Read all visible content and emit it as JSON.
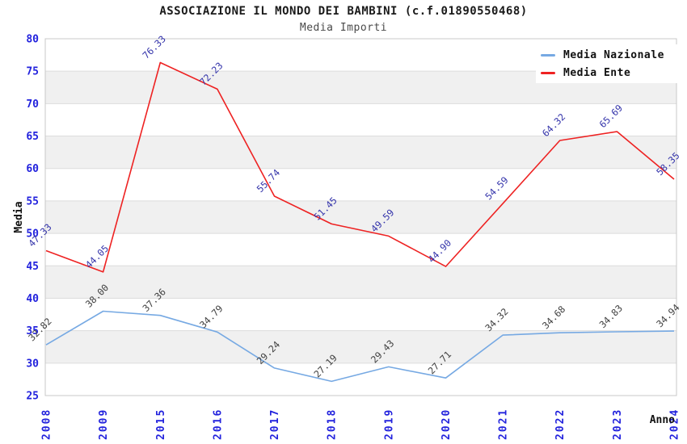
{
  "page": {
    "title": "ASSOCIAZIONE IL MONDO DEI BAMBINI (c.f.01890550468)",
    "subtitle": "Media Importi"
  },
  "axes": {
    "y_title": "Media",
    "x_title": "Anno",
    "y_ticks": [
      80,
      75,
      70,
      65,
      60,
      55,
      50,
      45,
      40,
      35,
      30,
      25
    ]
  },
  "legend": {
    "position": "top-right",
    "items": [
      {
        "label": "Media Nazionale",
        "color": "#76a9e3"
      },
      {
        "label": "Media Ente",
        "color": "#ee2222"
      }
    ]
  },
  "colors": {
    "band_gray": "#f0f0f0",
    "gridline": "#dcdcdc",
    "plot_border": "#c8c8c8",
    "tick_label_blue": "#2222dd",
    "axis_title_black": "#111111",
    "nazionale_line": "#76a9e3",
    "ente_line": "#ee2222",
    "nazionale_label": "#404040",
    "ente_label": "#3333aa"
  },
  "chart_data": {
    "type": "line",
    "title": "ASSOCIAZIONE IL MONDO DEI BAMBINI (c.f.01890550468)",
    "subtitle": "Media Importi",
    "xlabel": "Anno",
    "ylabel": "Media",
    "ylim": [
      25,
      80
    ],
    "y_tick_step": 5,
    "grid": true,
    "band_fill_alternating": true,
    "legend_position": "top-right",
    "categories": [
      "2008",
      "2009",
      "2015",
      "2016",
      "2017",
      "2018",
      "2019",
      "2020",
      "2021",
      "2022",
      "2023",
      "2024"
    ],
    "series": [
      {
        "name": "Media Nazionale",
        "color": "#76a9e3",
        "label_color": "#404040",
        "values": [
          32.82,
          38.0,
          37.36,
          34.79,
          29.24,
          27.19,
          29.43,
          27.71,
          34.32,
          34.68,
          34.83,
          34.94
        ]
      },
      {
        "name": "Media Ente",
        "color": "#ee2222",
        "label_color": "#3333aa",
        "values": [
          47.33,
          44.05,
          76.33,
          72.23,
          55.74,
          51.45,
          49.59,
          44.9,
          54.59,
          64.32,
          65.69,
          58.35
        ]
      }
    ]
  }
}
